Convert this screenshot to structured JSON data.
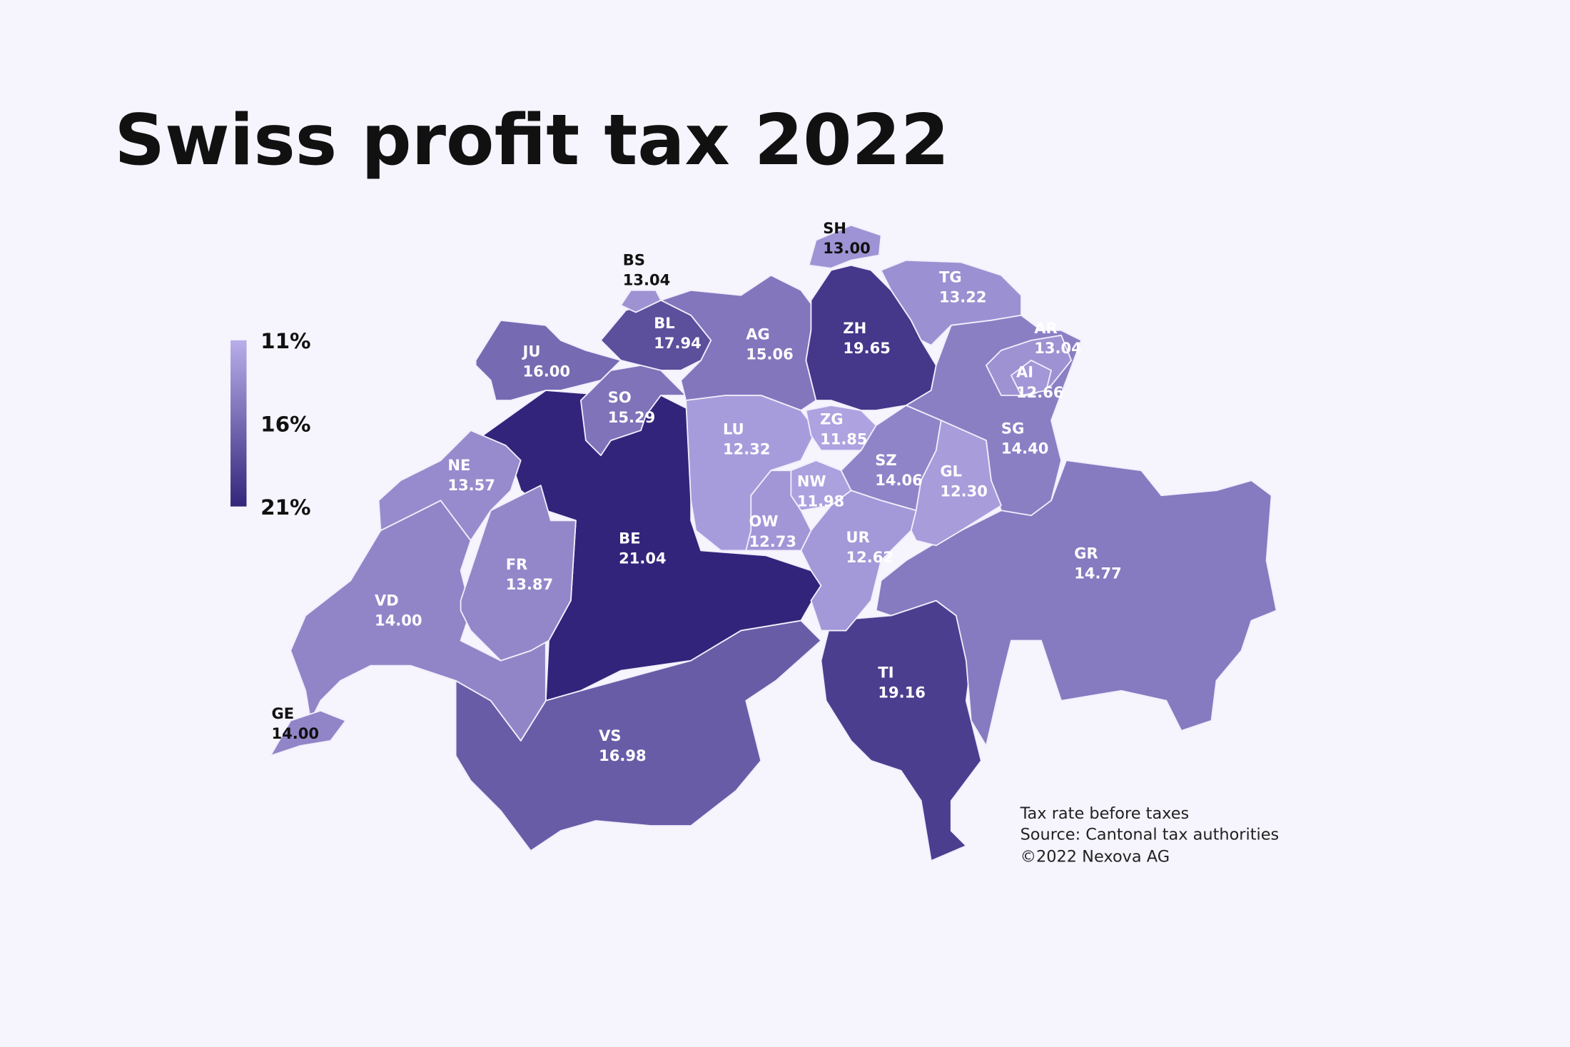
{
  "chart_data": {
    "type": "choropleth",
    "title": "Swiss profit tax 2022",
    "categories": [
      "BE",
      "VS",
      "TI",
      "GR",
      "VD",
      "FR",
      "NE",
      "JU",
      "SO",
      "AG",
      "BL",
      "BS",
      "ZH",
      "SH",
      "TG",
      "SG",
      "AR",
      "AI",
      "LU",
      "ZG",
      "SZ",
      "GL",
      "UR",
      "OW",
      "NW",
      "GE"
    ],
    "values": [
      21.04,
      16.98,
      19.16,
      14.77,
      14,
      13.87,
      13.57,
      16,
      15.29,
      15.06,
      17.94,
      13.04,
      19.65,
      13,
      13.22,
      14.4,
      13.04,
      12.66,
      12.32,
      11.85,
      14.06,
      12.3,
      12.62,
      12.73,
      11.98,
      14
    ],
    "value_labels": [
      "21.04",
      "16.98",
      "19.16",
      "14.77",
      "14.00",
      "13.87",
      "13.57",
      "16.00",
      "15.29",
      "15.06",
      "17.94",
      "13.04",
      "19.65",
      "13.00",
      "13.22",
      "14.40",
      "13.04",
      "12.66",
      "12.32",
      "11.85",
      "14.06",
      "12.30",
      "12.62",
      "12.73",
      "11.98",
      "14.00"
    ],
    "colorscale": [
      "#b9aeea",
      "#33257a"
    ],
    "clim": [
      11,
      21
    ],
    "cticks": [
      {
        "value": 11,
        "label": "11%"
      },
      {
        "value": 16,
        "label": "16%"
      },
      {
        "value": 21,
        "label": "21%"
      }
    ],
    "notes": [
      "Tax rate before taxes",
      "Source: Cantonal tax authorities",
      "©2022 Nexova AG"
    ]
  }
}
